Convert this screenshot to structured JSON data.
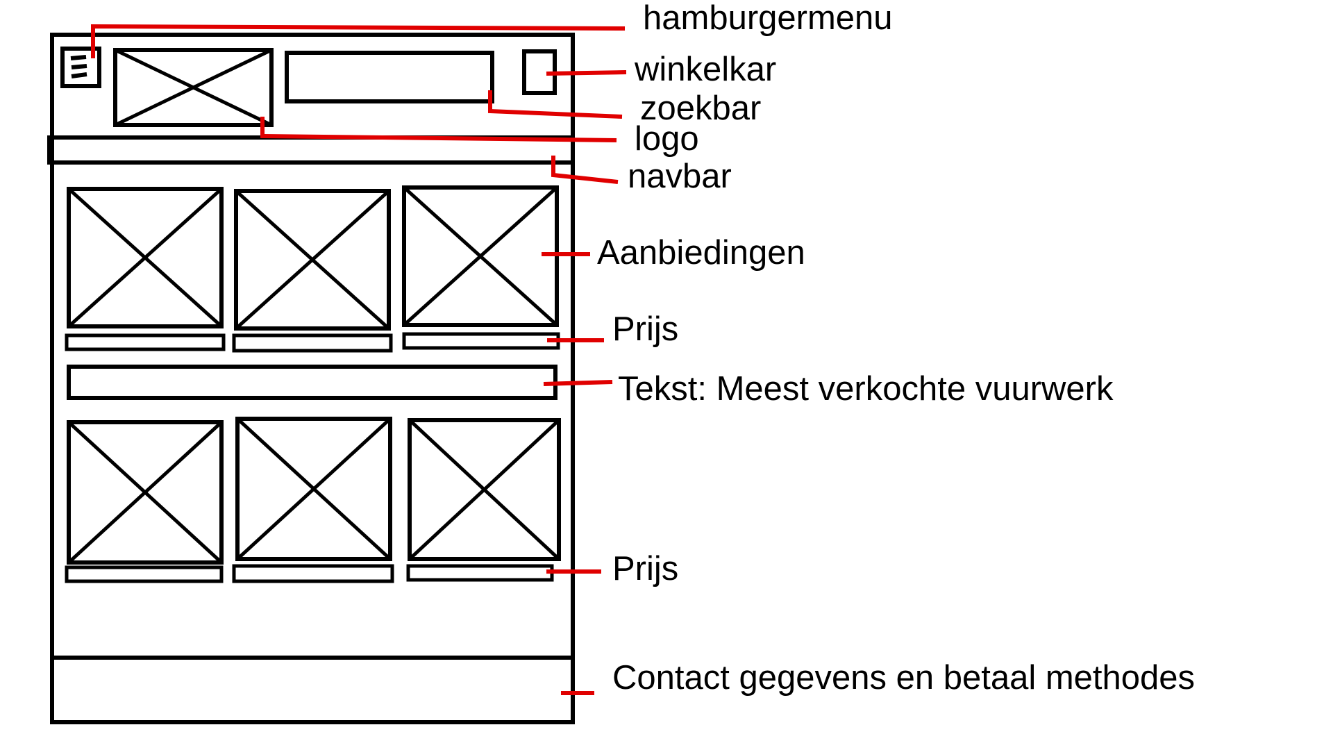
{
  "diagram": {
    "stroke_color": "#000000",
    "annotation_color": "#e00000",
    "background": "#ffffff"
  },
  "labels": {
    "hamburgermenu": "hamburgermenu",
    "winkelkar": "winkelkar",
    "zoekbar": "zoekbar",
    "logo": "logo",
    "navbar": "navbar",
    "aanbiedingen": "Aanbiedingen",
    "prijs_top": "Prijs",
    "tekst": "Tekst: Meest verkochte vuurwerk",
    "prijs_bottom": "Prijs",
    "footer": "Contact gegevens en betaal methodes"
  }
}
